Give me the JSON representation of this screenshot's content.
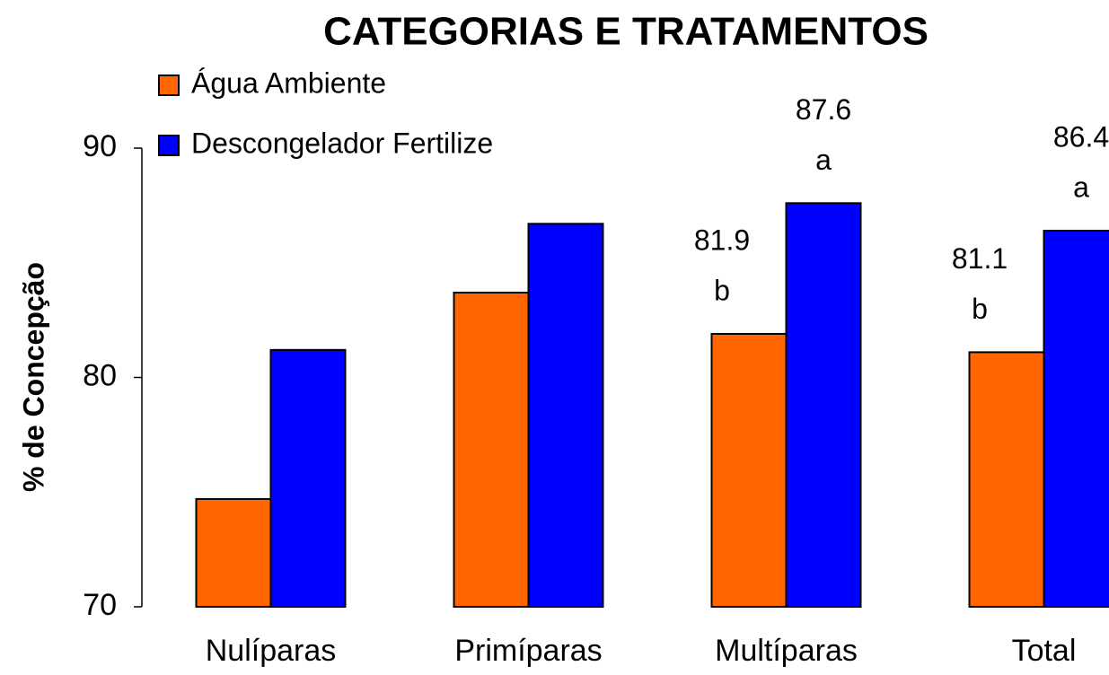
{
  "chart_data": {
    "type": "bar",
    "title": "CATEGORIAS E TRATAMENTOS",
    "ylabel": "% de Concepção",
    "categories": [
      "Nulíparas",
      "Primíparas",
      "Multíparas",
      "Total"
    ],
    "series": [
      {
        "name": "Água Ambiente",
        "color": "#ff6600",
        "values": [
          74.7,
          83.7,
          81.9,
          81.1
        ],
        "value_labels": [
          null,
          null,
          "81.9",
          "81.1"
        ],
        "letters": [
          null,
          null,
          "b",
          "b"
        ]
      },
      {
        "name": "Descongelador Fertilize",
        "color": "#0000ff",
        "values": [
          81.2,
          86.7,
          87.6,
          86.4
        ],
        "value_labels": [
          null,
          null,
          "87.6",
          "86.4"
        ],
        "letters": [
          null,
          null,
          "a",
          "a"
        ]
      }
    ],
    "ylim": [
      70,
      90
    ],
    "yticks": [
      70,
      80,
      90
    ],
    "legend": "upper left"
  }
}
